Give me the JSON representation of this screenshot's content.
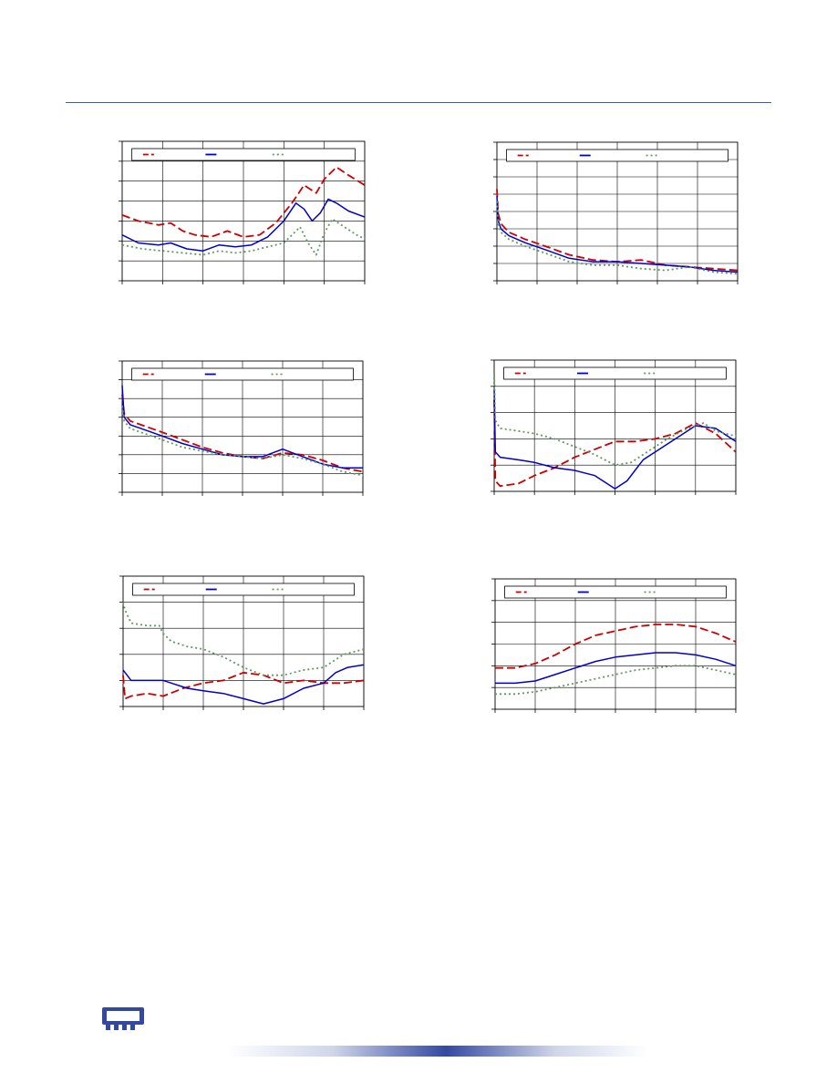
{
  "colors": {
    "series_red": "#cc0000",
    "series_blue": "#0000cc",
    "series_green": "#5f9a5f",
    "grid": "#000000",
    "header_rule": "#3a5ea8",
    "logo": "#3448a0"
  },
  "icons": {
    "logo": "memory-module-icon"
  },
  "chart_data": [
    {
      "type": "line",
      "grid": true,
      "legend": "top",
      "xlim": [
        0,
        6
      ],
      "ylim": [
        0,
        7
      ],
      "x_ticks": [
        0,
        1,
        2,
        3,
        4,
        5,
        6
      ],
      "y_ticks": [
        0,
        1,
        2,
        3,
        4,
        5,
        6,
        7
      ],
      "series": [
        {
          "style": "dashed",
          "color": "#cc0000",
          "x": [
            0,
            0.4,
            0.9,
            1.2,
            1.5,
            1.8,
            2.2,
            2.6,
            3.0,
            3.4,
            3.8,
            4.2,
            4.5,
            4.8,
            5.0,
            5.3,
            5.6,
            6.0
          ],
          "y": [
            3.3,
            3.0,
            2.8,
            2.9,
            2.5,
            2.3,
            2.2,
            2.5,
            2.2,
            2.3,
            2.9,
            3.9,
            4.8,
            4.4,
            5.1,
            5.7,
            5.3,
            4.8
          ]
        },
        {
          "style": "solid",
          "color": "#0000cc",
          "x": [
            0,
            0.4,
            0.9,
            1.2,
            1.6,
            2.0,
            2.4,
            2.8,
            3.2,
            3.6,
            4.0,
            4.3,
            4.5,
            4.7,
            4.9,
            5.1,
            5.3,
            5.6,
            6.0
          ],
          "y": [
            2.3,
            1.9,
            1.8,
            1.9,
            1.6,
            1.5,
            1.8,
            1.7,
            1.8,
            2.2,
            3.0,
            3.9,
            3.6,
            3.0,
            3.4,
            4.1,
            3.9,
            3.5,
            3.2
          ]
        },
        {
          "style": "dotted",
          "color": "#5f9a5f",
          "x": [
            0,
            0.5,
            1.0,
            1.5,
            2.0,
            2.4,
            2.8,
            3.2,
            3.6,
            4.0,
            4.4,
            4.6,
            4.8,
            5.0,
            5.2,
            5.5,
            5.8,
            6.0
          ],
          "y": [
            1.8,
            1.6,
            1.5,
            1.4,
            1.3,
            1.5,
            1.4,
            1.5,
            1.7,
            1.9,
            2.7,
            1.9,
            1.3,
            2.4,
            3.1,
            2.7,
            2.3,
            2.1
          ]
        }
      ]
    },
    {
      "type": "line",
      "grid": true,
      "legend": "top",
      "xlim": [
        0,
        6
      ],
      "ylim": [
        0,
        8
      ],
      "x_ticks": [
        0,
        1,
        2,
        3,
        4,
        5,
        6
      ],
      "y_ticks": [
        0,
        1,
        2,
        3,
        4,
        5,
        6,
        7,
        8
      ],
      "series": [
        {
          "style": "dashed",
          "color": "#cc0000",
          "x": [
            0,
            0.03,
            0.1,
            0.3,
            0.7,
            1.2,
            1.8,
            2.4,
            3.0,
            3.6,
            4.2,
            4.8,
            5.4,
            6.0
          ],
          "y": [
            5.3,
            3.9,
            3.3,
            2.8,
            2.4,
            2.0,
            1.5,
            1.2,
            1.1,
            1.2,
            0.9,
            0.8,
            0.7,
            0.6
          ]
        },
        {
          "style": "solid",
          "color": "#0000cc",
          "x": [
            0,
            0.03,
            0.1,
            0.3,
            0.7,
            1.2,
            1.8,
            2.4,
            3.0,
            3.6,
            4.2,
            4.8,
            5.4,
            6.0
          ],
          "y": [
            4.9,
            3.5,
            3.0,
            2.6,
            2.2,
            1.8,
            1.3,
            1.1,
            1.1,
            1.0,
            0.9,
            0.8,
            0.6,
            0.5
          ]
        },
        {
          "style": "dotted",
          "color": "#5f9a5f",
          "x": [
            0,
            0.03,
            0.1,
            0.3,
            0.7,
            1.2,
            1.8,
            2.4,
            3.0,
            3.6,
            4.2,
            4.8,
            5.4,
            6.0
          ],
          "y": [
            4.6,
            3.3,
            2.8,
            2.4,
            2.0,
            1.6,
            1.1,
            0.9,
            0.9,
            0.7,
            0.6,
            0.8,
            0.5,
            0.4
          ]
        }
      ]
    },
    {
      "type": "line",
      "grid": true,
      "legend": "top",
      "xlim": [
        0,
        6
      ],
      "ylim": [
        0,
        7
      ],
      "x_ticks": [
        0,
        1,
        2,
        3,
        4,
        5,
        6
      ],
      "y_ticks": [
        0,
        1,
        2,
        3,
        4,
        5,
        6,
        7
      ],
      "series": [
        {
          "style": "dashed",
          "color": "#cc0000",
          "x": [
            0,
            0.05,
            0.2,
            0.6,
            1.0,
            1.5,
            2.0,
            2.5,
            3.0,
            3.5,
            4.0,
            4.5,
            5.0,
            5.5,
            6.0
          ],
          "y": [
            5.2,
            4.2,
            3.8,
            3.5,
            3.2,
            2.8,
            2.4,
            2.1,
            1.9,
            1.8,
            2.1,
            2.0,
            1.7,
            1.3,
            1.1
          ]
        },
        {
          "style": "solid",
          "color": "#0000cc",
          "x": [
            0,
            0.05,
            0.2,
            0.6,
            1.0,
            1.5,
            2.0,
            2.5,
            3.0,
            3.5,
            4.0,
            4.5,
            5.0,
            5.5,
            6.0
          ],
          "y": [
            5.7,
            4.0,
            3.6,
            3.3,
            3.0,
            2.6,
            2.3,
            2.0,
            1.9,
            1.9,
            2.3,
            1.9,
            1.5,
            1.3,
            1.3
          ]
        },
        {
          "style": "dotted",
          "color": "#5f9a5f",
          "x": [
            0,
            0.05,
            0.2,
            0.6,
            1.0,
            1.5,
            2.0,
            2.5,
            3.0,
            3.5,
            4.0,
            4.5,
            5.0,
            5.5,
            6.0
          ],
          "y": [
            4.6,
            3.8,
            3.4,
            3.1,
            2.8,
            2.4,
            2.2,
            2.0,
            1.9,
            1.8,
            2.0,
            1.8,
            1.5,
            1.1,
            0.9
          ]
        }
      ]
    },
    {
      "type": "line",
      "grid": true,
      "legend": "top",
      "xlim": [
        0,
        6
      ],
      "ylim": [
        0,
        5
      ],
      "x_ticks": [
        0,
        1,
        2,
        3,
        4,
        5,
        6
      ],
      "y_ticks": [
        0,
        1,
        2,
        3,
        4,
        5
      ],
      "series": [
        {
          "style": "dashed",
          "color": "#cc0000",
          "x": [
            0,
            0.03,
            0.15,
            0.6,
            1.0,
            1.5,
            2.0,
            2.5,
            3.0,
            3.5,
            4.0,
            4.5,
            5.0,
            5.5,
            6.0
          ],
          "y": [
            3.5,
            0.4,
            0.2,
            0.3,
            0.6,
            0.9,
            1.3,
            1.6,
            1.9,
            1.9,
            2.0,
            2.2,
            2.6,
            2.2,
            1.5
          ]
        },
        {
          "style": "solid",
          "color": "#0000cc",
          "x": [
            0,
            0.03,
            0.15,
            0.6,
            1.0,
            1.5,
            2.0,
            2.5,
            2.8,
            3.0,
            3.3,
            3.7,
            4.2,
            4.6,
            5.0,
            5.5,
            6.0
          ],
          "y": [
            3.9,
            1.5,
            1.3,
            1.2,
            1.1,
            0.9,
            0.8,
            0.6,
            0.3,
            0.1,
            0.4,
            1.2,
            1.7,
            2.1,
            2.5,
            2.4,
            1.9
          ]
        },
        {
          "style": "dotted",
          "color": "#5f9a5f",
          "x": [
            0,
            0.03,
            0.15,
            0.6,
            1.0,
            1.5,
            2.0,
            2.5,
            3.0,
            3.4,
            3.8,
            4.3,
            4.8,
            5.2,
            5.5,
            6.0
          ],
          "y": [
            4.6,
            2.7,
            2.4,
            2.3,
            2.2,
            2.0,
            1.7,
            1.4,
            1.0,
            1.1,
            1.5,
            2.0,
            2.4,
            2.6,
            2.3,
            2.1
          ]
        }
      ]
    },
    {
      "type": "line",
      "grid": true,
      "legend": "top",
      "xlim": [
        0,
        6
      ],
      "ylim": [
        0,
        5
      ],
      "x_ticks": [
        0,
        1,
        2,
        3,
        4,
        5,
        6
      ],
      "y_ticks": [
        0,
        1,
        2,
        3,
        4,
        5
      ],
      "series": [
        {
          "style": "dashed",
          "color": "#cc0000",
          "x": [
            0,
            0.05,
            0.2,
            0.6,
            1.0,
            1.5,
            2.0,
            2.5,
            3.0,
            3.5,
            4.0,
            4.5,
            5.0,
            5.5,
            6.0
          ],
          "y": [
            1.2,
            0.3,
            0.4,
            0.5,
            0.4,
            0.7,
            0.9,
            1.0,
            1.3,
            1.2,
            0.9,
            1.0,
            0.9,
            0.9,
            1.0
          ]
        },
        {
          "style": "solid",
          "color": "#0000cc",
          "x": [
            0,
            0.05,
            0.2,
            0.6,
            1.0,
            1.2,
            1.6,
            2.0,
            2.5,
            3.0,
            3.5,
            4.0,
            4.5,
            5.0,
            5.3,
            5.6,
            6.0
          ],
          "y": [
            1.4,
            1.3,
            1.0,
            1.0,
            1.0,
            0.9,
            0.7,
            0.6,
            0.5,
            0.3,
            0.1,
            0.3,
            0.7,
            0.9,
            1.3,
            1.5,
            1.6
          ]
        },
        {
          "style": "dotted",
          "color": "#5f9a5f",
          "x": [
            0,
            0.05,
            0.2,
            0.6,
            0.9,
            1.0,
            1.2,
            1.6,
            2.0,
            2.5,
            3.0,
            3.5,
            4.0,
            4.5,
            5.0,
            5.5,
            6.0
          ],
          "y": [
            4.0,
            3.7,
            3.2,
            3.1,
            3.1,
            2.8,
            2.5,
            2.3,
            2.2,
            1.9,
            1.5,
            1.2,
            1.2,
            1.4,
            1.5,
            2.0,
            2.2
          ]
        }
      ]
    },
    {
      "type": "line",
      "grid": true,
      "legend": "top",
      "xlim": [
        0,
        6
      ],
      "ylim": [
        0,
        6
      ],
      "x_ticks": [
        0,
        1,
        2,
        3,
        4,
        5,
        6
      ],
      "y_ticks": [
        0,
        1,
        2,
        3,
        4,
        5,
        6
      ],
      "series": [
        {
          "style": "dashed",
          "color": "#cc0000",
          "x": [
            0,
            0.5,
            1.0,
            1.5,
            2.0,
            2.5,
            3.0,
            3.5,
            4.0,
            4.5,
            5.0,
            5.5,
            6.0
          ],
          "y": [
            1.9,
            1.9,
            2.1,
            2.5,
            3.0,
            3.4,
            3.6,
            3.8,
            3.9,
            3.9,
            3.8,
            3.5,
            3.1
          ]
        },
        {
          "style": "solid",
          "color": "#0000cc",
          "x": [
            0,
            0.5,
            1.0,
            1.5,
            2.0,
            2.5,
            3.0,
            3.5,
            4.0,
            4.5,
            5.0,
            5.5,
            6.0
          ],
          "y": [
            1.2,
            1.2,
            1.3,
            1.6,
            1.9,
            2.2,
            2.4,
            2.5,
            2.6,
            2.6,
            2.5,
            2.3,
            2.0
          ]
        },
        {
          "style": "dotted",
          "color": "#5f9a5f",
          "x": [
            0,
            0.5,
            1.0,
            1.5,
            2.0,
            2.5,
            3.0,
            3.5,
            4.0,
            4.5,
            5.0,
            5.5,
            6.0
          ],
          "y": [
            0.7,
            0.7,
            0.8,
            1.0,
            1.2,
            1.4,
            1.6,
            1.8,
            1.9,
            2.0,
            2.0,
            1.8,
            1.6
          ]
        }
      ]
    }
  ]
}
